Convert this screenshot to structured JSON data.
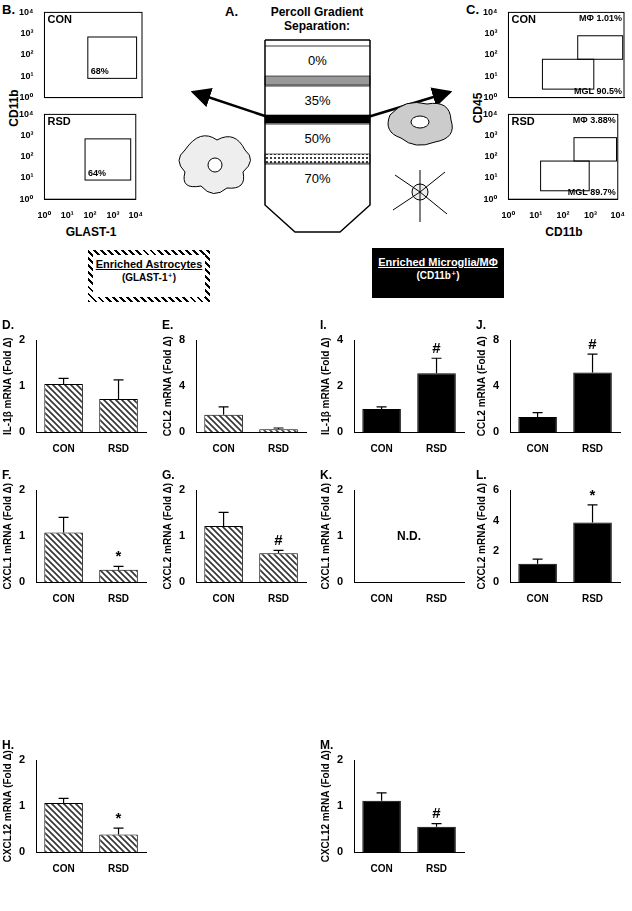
{
  "diagram": {
    "title": "A.",
    "caption": [
      "Percoll Gradient",
      "Separation:"
    ],
    "layers": [
      "0%",
      "35%",
      "50%",
      "70%"
    ]
  },
  "flow_panels": [
    {
      "title": "B.",
      "x_label": "GLAST-1",
      "y_label": "CD11b",
      "xlim": [
        1,
        10000
      ],
      "ylim": [
        1,
        10000
      ],
      "xticks": [
        {
          "value": 1,
          "label": "10⁰"
        },
        {
          "value": 10,
          "label": "10¹"
        },
        {
          "value": 100,
          "label": "10²"
        },
        {
          "value": 1000,
          "label": "10³"
        },
        {
          "value": 10000,
          "label": "10⁴"
        }
      ],
      "yticks": [
        {
          "value": 1,
          "label": "10⁰"
        },
        {
          "value": 10,
          "label": "10¹"
        },
        {
          "value": 100,
          "label": "10²"
        },
        {
          "value": 1000,
          "label": "10³"
        },
        {
          "value": 10000,
          "label": "10⁴"
        }
      ],
      "plots": [
        {
          "title": "CON",
          "gates": [
            {
              "x": [
                60,
                6000
              ],
              "y": [
                8,
                700
              ],
              "label": "68%"
            }
          ]
        },
        {
          "title": "RSD",
          "gates": [
            {
              "x": [
                60,
                6000
              ],
              "y": [
                8,
                700
              ],
              "label": "64%"
            }
          ]
        }
      ]
    },
    {
      "title": "C.",
      "x_label": "CD11b",
      "y_label": "CD45",
      "xlim": [
        1,
        10000
      ],
      "ylim": [
        1,
        10000
      ],
      "xticks": [
        {
          "value": 1,
          "label": "10⁰"
        },
        {
          "value": 10,
          "label": "10¹"
        },
        {
          "value": 100,
          "label": "10²"
        },
        {
          "value": 1000,
          "label": "10³"
        },
        {
          "value": 10000,
          "label": "10⁴"
        }
      ],
      "yticks": [
        {
          "value": 1,
          "label": "10⁰"
        },
        {
          "value": 10,
          "label": "10¹"
        },
        {
          "value": 100,
          "label": "10²"
        },
        {
          "value": 1000,
          "label": "10³"
        },
        {
          "value": 10000,
          "label": "10⁴"
        }
      ],
      "plots": [
        {
          "title": "CON",
          "gates": [
            {
              "x": [
                250,
                9000
              ],
              "y": [
                63,
                800
              ],
              "label": "MΦ 1.01%"
            },
            {
              "x": [
                15,
                900
              ],
              "y": [
                2.5,
                63
              ],
              "label": "MGL 90.5%"
            }
          ]
        },
        {
          "title": "RSD",
          "gates": [
            {
              "x": [
                250,
                9000
              ],
              "y": [
                63,
                800
              ],
              "label": "MΦ 3.88%"
            },
            {
              "x": [
                15,
                900
              ],
              "y": [
                2.5,
                63
              ],
              "label": "MGL 89.7%"
            }
          ]
        }
      ]
    }
  ],
  "groups": [
    {
      "title": "Enriched Astrocytes",
      "subtitle": "(GLAST-1⁺)"
    },
    {
      "title": "Enriched Microglia/MΦ",
      "subtitle": "(CD11b⁺)"
    }
  ],
  "chart_data": [
    {
      "type": "bar",
      "title": "D.",
      "y_label": "IL-1β mRNA (Fold Δ)",
      "categories": [
        "CON",
        "RSD"
      ],
      "values": [
        1.05,
        0.72
      ],
      "errors": [
        0.12,
        0.42
      ],
      "color": "#333333",
      "ylim": [
        0,
        2
      ],
      "yticks": [
        0,
        1,
        2
      ],
      "annotations": []
    },
    {
      "type": "bar",
      "title": "E.",
      "y_label": "CCL2 mRNA (Fold Δ)",
      "categories": [
        "CON",
        "RSD"
      ],
      "values": [
        1.5,
        0.25
      ],
      "errors": [
        0.7,
        0.1
      ],
      "color": "#333333",
      "ylim": [
        0,
        8
      ],
      "yticks": [
        0,
        4,
        8
      ],
      "annotations": []
    },
    {
      "type": "bar",
      "title": "F.",
      "y_label": "CXCL1 mRNA (Fold Δ)",
      "categories": [
        "CON",
        "RSD"
      ],
      "values": [
        1.08,
        0.27
      ],
      "errors": [
        0.33,
        0.07
      ],
      "color": "#333333",
      "ylim": [
        0,
        2
      ],
      "yticks": [
        0,
        1,
        2
      ],
      "annotations": [
        {
          "category": "RSD",
          "text": "*"
        }
      ]
    },
    {
      "type": "bar",
      "title": "G.",
      "y_label": "CXCL2 mRNA (Fold Δ)",
      "categories": [
        "CON",
        "RSD"
      ],
      "values": [
        1.22,
        0.63
      ],
      "errors": [
        0.3,
        0.06
      ],
      "color": "#333333",
      "ylim": [
        0,
        2
      ],
      "yticks": [
        0,
        1,
        2
      ],
      "annotations": [
        {
          "category": "RSD",
          "text": "#"
        }
      ]
    },
    {
      "type": "bar",
      "title": "H.",
      "y_label": "CXCL12 mRNA (Fold Δ)",
      "categories": [
        "CON",
        "RSD"
      ],
      "values": [
        1.07,
        0.38
      ],
      "errors": [
        0.1,
        0.14
      ],
      "color": "#333333",
      "ylim": [
        0,
        2
      ],
      "yticks": [
        0,
        1,
        2
      ],
      "annotations": [
        {
          "category": "RSD",
          "text": "*"
        }
      ]
    },
    {
      "type": "bar",
      "title": "I.",
      "y_label": "IL-1β mRNA (Fold Δ)",
      "categories": [
        "CON",
        "RSD"
      ],
      "values": [
        1.0,
        2.57
      ],
      "errors": [
        0.1,
        0.65
      ],
      "color": "#000000",
      "ylim": [
        0,
        4
      ],
      "yticks": [
        0,
        2,
        4
      ],
      "annotations": [
        {
          "category": "RSD",
          "text": "#"
        }
      ]
    },
    {
      "type": "bar",
      "title": "J.",
      "y_label": "CCL2 mRNA (Fold Δ)",
      "categories": [
        "CON",
        "RSD"
      ],
      "values": [
        1.3,
        5.2
      ],
      "errors": [
        0.4,
        1.6
      ],
      "color": "#000000",
      "ylim": [
        0,
        8
      ],
      "yticks": [
        0,
        4,
        8
      ],
      "annotations": [
        {
          "category": "RSD",
          "text": "#"
        }
      ]
    },
    {
      "type": "bar",
      "title": "K.",
      "y_label": "CXCL1 mRNA (Fold Δ)",
      "categories": [
        "CON",
        "RSD"
      ],
      "values": [
        null,
        null
      ],
      "errors": [
        null,
        null
      ],
      "color": "#000000",
      "ylim": [
        0,
        2
      ],
      "yticks": [
        0,
        1,
        2
      ],
      "annotations": [
        {
          "category": null,
          "text": "N.D."
        }
      ]
    },
    {
      "type": "bar",
      "title": "L.",
      "y_label": "CXCL2 mRNA (Fold Δ)",
      "categories": [
        "CON",
        "RSD"
      ],
      "values": [
        1.2,
        3.9
      ],
      "errors": [
        0.3,
        1.15
      ],
      "color": "#000000",
      "ylim": [
        0,
        6
      ],
      "yticks": [
        0,
        2,
        4,
        6
      ],
      "annotations": [
        {
          "category": "RSD",
          "text": "*"
        }
      ]
    },
    {
      "type": "bar",
      "title": "M.",
      "y_label": "CXCL12 mRNA (Fold Δ)",
      "categories": [
        "CON",
        "RSD"
      ],
      "values": [
        1.12,
        0.55
      ],
      "errors": [
        0.17,
        0.07
      ],
      "color": "#000000",
      "ylim": [
        0,
        2
      ],
      "yticks": [
        0,
        1,
        2
      ],
      "annotations": [
        {
          "category": "RSD",
          "text": "#"
        }
      ]
    }
  ]
}
